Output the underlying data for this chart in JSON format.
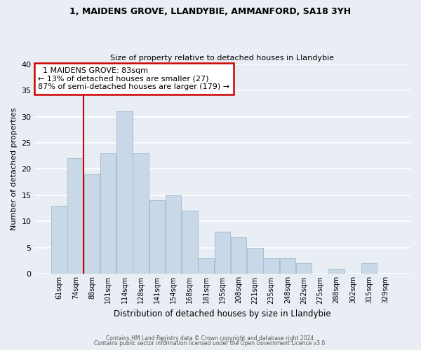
{
  "title1": "1, MAIDENS GROVE, LLANDYBIE, AMMANFORD, SA18 3YH",
  "title2": "Size of property relative to detached houses in Llandybie",
  "xlabel": "Distribution of detached houses by size in Llandybie",
  "ylabel": "Number of detached properties",
  "bin_labels": [
    "61sqm",
    "74sqm",
    "88sqm",
    "101sqm",
    "114sqm",
    "128sqm",
    "141sqm",
    "154sqm",
    "168sqm",
    "181sqm",
    "195sqm",
    "208sqm",
    "221sqm",
    "235sqm",
    "248sqm",
    "262sqm",
    "275sqm",
    "288sqm",
    "302sqm",
    "315sqm",
    "329sqm"
  ],
  "bar_values": [
    13,
    22,
    19,
    23,
    31,
    23,
    14,
    15,
    12,
    3,
    8,
    7,
    5,
    3,
    3,
    2,
    0,
    1,
    0,
    2,
    0
  ],
  "bar_color": "#c8d8e8",
  "bar_edge_color": "#a8bfd0",
  "highlight_color": "#cc0000",
  "annotation_title": "1 MAIDENS GROVE: 83sqm",
  "annotation_line1": "← 13% of detached houses are smaller (27)",
  "annotation_line2": "87% of semi-detached houses are larger (179) →",
  "annotation_box_color": "#ffffff",
  "annotation_box_edge": "#cc0000",
  "footer1": "Contains HM Land Registry data © Crown copyright and database right 2024.",
  "footer2": "Contains public sector information licensed under the Open Government Licence v3.0.",
  "ylim": [
    0,
    40
  ],
  "yticks": [
    0,
    5,
    10,
    15,
    20,
    25,
    30,
    35,
    40
  ],
  "bg_color": "#e8eef4",
  "grid_color": "#ffffff"
}
